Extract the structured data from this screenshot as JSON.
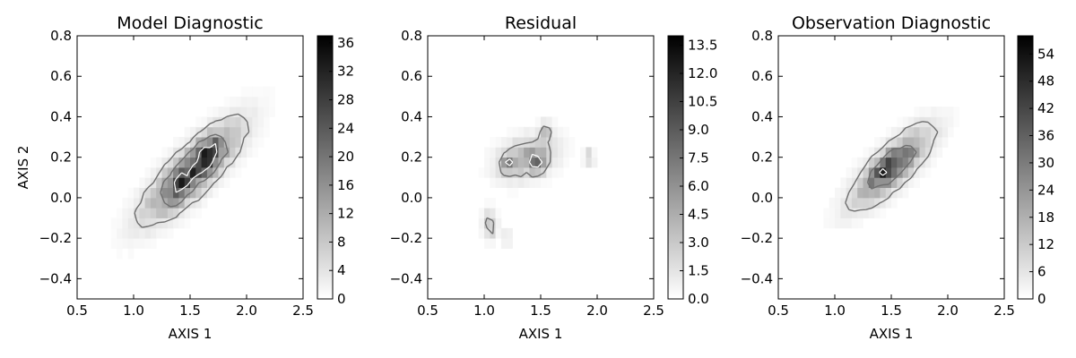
{
  "chart_data": [
    {
      "type": "heatmap",
      "title": "Model Diagnostic",
      "xlabel": "AXIS 1",
      "ylabel": "AXIS 2",
      "xlim": [
        0.5,
        2.5
      ],
      "ylim": [
        -0.5,
        0.8
      ],
      "xticks": [
        "0.5",
        "1.0",
        "1.5",
        "2.0",
        "2.5"
      ],
      "yticks": [
        "−0.4",
        "−0.2",
        "0.0",
        "0.2",
        "0.4",
        "0.6",
        "0.8"
      ],
      "colorbar": {
        "range": [
          0,
          37
        ],
        "ticks": [
          "0",
          "4",
          "8",
          "12",
          "16",
          "20",
          "24",
          "28",
          "32",
          "36"
        ]
      },
      "colormap": "white-to-black grayscale",
      "blobs": [
        {
          "x": 1.52,
          "y": 0.13,
          "sx": 0.27,
          "sy": 0.15,
          "rho": 0.82,
          "amp": 22
        },
        {
          "x": 1.65,
          "y": 0.22,
          "sx": 0.08,
          "sy": 0.05,
          "rho": 0.4,
          "amp": 14
        },
        {
          "x": 1.45,
          "y": 0.07,
          "sx": 0.07,
          "sy": 0.05,
          "rho": 0.4,
          "amp": 8
        }
      ],
      "contour_levels": [
        4,
        12,
        24
      ]
    },
    {
      "type": "heatmap",
      "title": "Residual",
      "xlabel": "AXIS 1",
      "ylabel": "",
      "xlim": [
        0.5,
        2.5
      ],
      "ylim": [
        -0.5,
        0.8
      ],
      "xticks": [
        "0.5",
        "1.0",
        "1.5",
        "2.0",
        "2.5"
      ],
      "yticks": [
        "−0.4",
        "−0.2",
        "0.0",
        "0.2",
        "0.4",
        "0.6",
        "0.8"
      ],
      "colorbar": {
        "range": [
          0,
          14
        ],
        "ticks": [
          "0.0",
          "1.5",
          "3.0",
          "4.5",
          "6.0",
          "7.5",
          "9.0",
          "10.5",
          "12.0",
          "13.5"
        ]
      },
      "colormap": "white-to-black grayscale",
      "blobs": [
        {
          "x": 1.38,
          "y": 0.2,
          "sx": 0.17,
          "sy": 0.07,
          "rho": 0.3,
          "amp": 4.5
        },
        {
          "x": 1.48,
          "y": 0.17,
          "sx": 0.04,
          "sy": 0.03,
          "rho": 0.0,
          "amp": 7
        },
        {
          "x": 1.22,
          "y": 0.17,
          "sx": 0.05,
          "sy": 0.03,
          "rho": 0.0,
          "amp": 4
        },
        {
          "x": 1.05,
          "y": -0.13,
          "sx": 0.04,
          "sy": 0.05,
          "rho": 0.0,
          "amp": 3.5
        },
        {
          "x": 1.2,
          "y": -0.2,
          "sx": 0.025,
          "sy": 0.02,
          "rho": 0.0,
          "amp": 3
        },
        {
          "x": 1.55,
          "y": 0.33,
          "sx": 0.04,
          "sy": 0.03,
          "rho": 0.0,
          "amp": 3
        },
        {
          "x": 1.93,
          "y": 0.2,
          "sx": 0.03,
          "sy": 0.03,
          "rho": 0.0,
          "amp": 2.5
        }
      ],
      "contour_levels": [
        2.2,
        6
      ]
    },
    {
      "type": "heatmap",
      "title": "Observation Diagnostic",
      "xlabel": "AXIS 1",
      "ylabel": "",
      "xlim": [
        0.5,
        2.5
      ],
      "ylim": [
        -0.5,
        0.8
      ],
      "xticks": [
        "0.5",
        "1.0",
        "1.5",
        "2.0",
        "2.5"
      ],
      "yticks": [
        "−0.4",
        "−0.2",
        "0.0",
        "0.2",
        "0.4",
        "0.6",
        "0.8"
      ],
      "colorbar": {
        "range": [
          0,
          58
        ],
        "ticks": [
          "0",
          "6",
          "12",
          "18",
          "24",
          "30",
          "36",
          "42",
          "48",
          "54"
        ]
      },
      "colormap": "white-to-black grayscale",
      "blobs": [
        {
          "x": 1.5,
          "y": 0.15,
          "sx": 0.22,
          "sy": 0.12,
          "rho": 0.8,
          "amp": 34
        },
        {
          "x": 1.47,
          "y": 0.15,
          "sx": 0.06,
          "sy": 0.04,
          "rho": 0.5,
          "amp": 20
        }
      ],
      "contour_levels": [
        6,
        22,
        44
      ]
    }
  ]
}
